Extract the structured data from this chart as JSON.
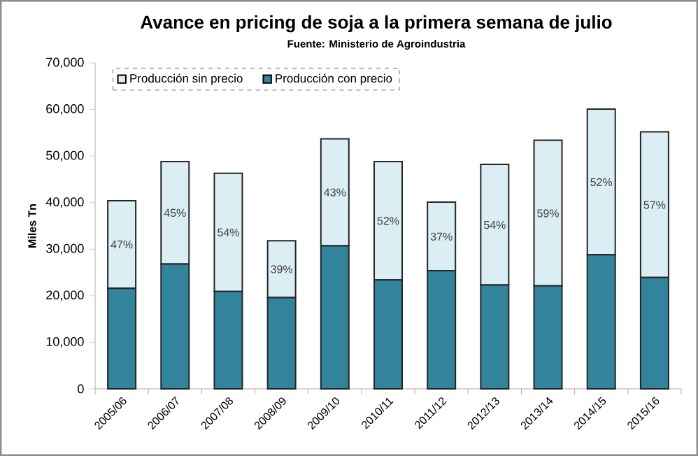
{
  "chart_data": {
    "type": "bar",
    "stacked": true,
    "title": "Avance en pricing de soja a la primera semana de julio",
    "subtitle": "Fuente: Ministerio de Agroindustria",
    "ylabel": "Miles Tn",
    "categories": [
      "2005/06",
      "2006/07",
      "2007/08",
      "2008/09",
      "2009/10",
      "2010/11",
      "2011/12",
      "2012/13",
      "2013/14",
      "2014/15",
      "2015/16"
    ],
    "series": [
      {
        "name": "Producción con precio",
        "color": "#31849b",
        "values": [
          21600,
          26800,
          20900,
          19600,
          30700,
          23400,
          25400,
          22300,
          22100,
          28800,
          23900
        ]
      },
      {
        "name": "Producción sin precio",
        "color": "#daeef3",
        "values": [
          18800,
          22000,
          25400,
          12200,
          23000,
          25400,
          14700,
          25900,
          31300,
          31300,
          31300
        ]
      }
    ],
    "annotations": [
      {
        "text": "47%",
        "x": "2005/06",
        "y": 31000
      },
      {
        "text": "45%",
        "x": "2006/07",
        "y": 37800
      },
      {
        "text": "54%",
        "x": "2007/08",
        "y": 33600
      },
      {
        "text": "39%",
        "x": "2008/09",
        "y": 25700
      },
      {
        "text": "43%",
        "x": "2009/10",
        "y": 42200
      },
      {
        "text": "52%",
        "x": "2010/11",
        "y": 36100
      },
      {
        "text": "37%",
        "x": "2011/12",
        "y": 32700
      },
      {
        "text": "54%",
        "x": "2012/13",
        "y": 35200
      },
      {
        "text": "59%",
        "x": "2013/14",
        "y": 37700
      },
      {
        "text": "52%",
        "x": "2014/15",
        "y": 44400
      },
      {
        "text": "57%",
        "x": "2015/16",
        "y": 39500
      }
    ],
    "ylim": [
      0,
      70000
    ],
    "yticks": [
      {
        "value": 0,
        "label": "0"
      },
      {
        "value": 10000,
        "label": "10,000"
      },
      {
        "value": 20000,
        "label": "20,000"
      },
      {
        "value": 30000,
        "label": "30,000"
      },
      {
        "value": 40000,
        "label": "40,000"
      },
      {
        "value": 50000,
        "label": "50,000"
      },
      {
        "value": 60000,
        "label": "60,000"
      },
      {
        "value": 70000,
        "label": "70,000"
      }
    ],
    "legend": "top left"
  }
}
